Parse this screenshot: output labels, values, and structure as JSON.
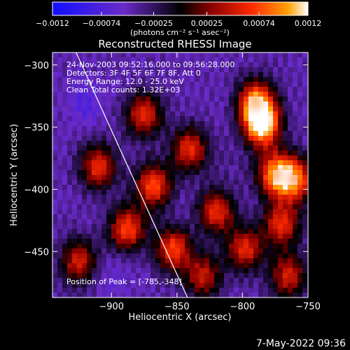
{
  "chart_data": {
    "type": "heatmap",
    "title": "Reconstructed RHESSI Image",
    "xlabel": "Heliocentric X (arcsec)",
    "ylabel": "Heliocentric Y (arcsec)",
    "xlim": [
      -945,
      -750
    ],
    "ylim": [
      -487,
      -290
    ],
    "x_ticks": [
      -900,
      -850,
      -800,
      -750
    ],
    "x_tick_labels": [
      "−900",
      "−850",
      "−800",
      "−750"
    ],
    "y_ticks": [
      -300,
      -350,
      -400,
      -450
    ],
    "y_tick_labels": [
      "−300",
      "−350",
      "−400",
      "−450"
    ],
    "colorbar": {
      "range": [
        -0.0012,
        0.0012
      ],
      "ticks": [
        -0.0012,
        -0.00074,
        -0.00025,
        0.00025,
        0.00074,
        0.0012
      ],
      "tick_labels": [
        "−0.0012",
        "−0.00074",
        "−0.00025",
        "0.00025",
        "0.00074",
        "0.0012"
      ],
      "unit_label": "(photons cm⁻² s⁻¹ asec⁻²)",
      "colors": [
        "#1010ff",
        "#6a2ac8",
        "#000000",
        "#8a0000",
        "#ff2a00",
        "#ffa000",
        "#ffffff"
      ]
    },
    "annotations": {
      "time_range": "24-Nov-2003 09:52:16.000 to 09:56:28.000",
      "detectors": "Detectors: 3F 4F 5F 6F 7F 8F, Att 0",
      "energy_range": "Energy Range: 12.0 - 25.0 keV",
      "method_counts": "Clean    Total counts: 1.32E+03",
      "peak_position": "Position of Peak = [-785,-348]"
    },
    "peak": [
      -785,
      -348
    ],
    "hot_spots": [
      {
        "x": -785,
        "y": -348,
        "value": 0.0012
      },
      {
        "x": -790,
        "y": -330,
        "value": 0.0009
      },
      {
        "x": -775,
        "y": -388,
        "value": 0.00085
      },
      {
        "x": -760,
        "y": -392,
        "value": 0.0008
      },
      {
        "x": -875,
        "y": -340,
        "value": 0.00055
      },
      {
        "x": -910,
        "y": -382,
        "value": 0.0006
      },
      {
        "x": -868,
        "y": -397,
        "value": 0.0007
      },
      {
        "x": -888,
        "y": -432,
        "value": 0.0007
      },
      {
        "x": -853,
        "y": -448,
        "value": 0.00068
      },
      {
        "x": -840,
        "y": -368,
        "value": 0.00058
      },
      {
        "x": -820,
        "y": -418,
        "value": 0.0006
      },
      {
        "x": -798,
        "y": -448,
        "value": 0.00055
      },
      {
        "x": -770,
        "y": -428,
        "value": 0.0006
      },
      {
        "x": -925,
        "y": -458,
        "value": 0.0005
      },
      {
        "x": -830,
        "y": -470,
        "value": 0.00045
      },
      {
        "x": -765,
        "y": -470,
        "value": 0.0005
      }
    ],
    "cold_spots": [
      {
        "x": -920,
        "y": -330,
        "value": -0.0007
      },
      {
        "x": -860,
        "y": -305,
        "value": -0.00045
      },
      {
        "x": -845,
        "y": -420,
        "value": -0.0005
      },
      {
        "x": -900,
        "y": -470,
        "value": -0.0006
      },
      {
        "x": -905,
        "y": -408,
        "value": -0.00045
      },
      {
        "x": -810,
        "y": -335,
        "value": -0.0005
      },
      {
        "x": -808,
        "y": -380,
        "value": -0.0004
      },
      {
        "x": -760,
        "y": -305,
        "value": -0.00045
      },
      {
        "x": -880,
        "y": -458,
        "value": -0.0005
      }
    ],
    "limb_line": [
      [
        -927,
        -290
      ],
      [
        -842,
        -487
      ]
    ],
    "grid": false
  },
  "footer": {
    "timestamp": "7-May-2022 09:36"
  }
}
